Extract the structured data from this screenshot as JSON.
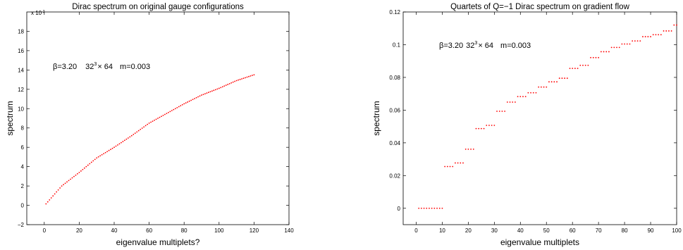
{
  "chart_data": [
    {
      "type": "scatter",
      "title": "Dirac spectrum on original gauge configurations",
      "xlabel": "eigenvalue multiplets?",
      "ylabel": "spectrum",
      "y_exponent_label": "x 10",
      "y_exponent_power": "-3",
      "annotation_beta": "β=3.20",
      "annotation_lattice_base": "32",
      "annotation_lattice_sup": "3",
      "annotation_lattice_rest": "× 64",
      "annotation_mass": "m=0.003",
      "xlim": [
        -10,
        140
      ],
      "ylim": [
        -2,
        20
      ],
      "xticks": [
        "0",
        "20",
        "40",
        "60",
        "80",
        "100",
        "120",
        "140"
      ],
      "yticks": [
        "−2",
        "0",
        "2",
        "4",
        "6",
        "8",
        "10",
        "12",
        "14",
        "16",
        "18"
      ],
      "series": [
        {
          "color": "#ff0000",
          "x": [
            1,
            10,
            20,
            30,
            40,
            50,
            60,
            70,
            80,
            90,
            100,
            110,
            120
          ],
          "y": [
            0.15,
            2.0,
            3.4,
            4.9,
            6.0,
            7.2,
            8.5,
            9.5,
            10.5,
            11.4,
            12.1,
            12.9,
            13.5
          ]
        }
      ]
    },
    {
      "type": "scatter",
      "title": "Quartets of Q=−1 Dirac spectrum on gradient flow",
      "xlabel": "eigenvalue multiplets",
      "ylabel": "spectrum",
      "annotation_beta": "β=3.20",
      "annotation_lattice_base": "32",
      "annotation_lattice_sup": "3",
      "annotation_lattice_rest": "× 64",
      "annotation_mass": "m=0.003",
      "xlim": [
        -5,
        100
      ],
      "ylim": [
        -0.01,
        0.12
      ],
      "xticks": [
        "0",
        "10",
        "20",
        "30",
        "40",
        "50",
        "60",
        "70",
        "80",
        "90",
        "100"
      ],
      "yticks": [
        "0",
        "0.02",
        "0.04",
        "0.06",
        "0.08",
        "0.1",
        "0.12"
      ],
      "series": [
        {
          "color": "#ff0000",
          "x": [
            1,
            2,
            3,
            4,
            5,
            6,
            7,
            8,
            9,
            10,
            11,
            12,
            13,
            14,
            15,
            16,
            17,
            18,
            19,
            20,
            21,
            22,
            23,
            24,
            25,
            26,
            27,
            28,
            29,
            30,
            31,
            32,
            33,
            34,
            35,
            36,
            37,
            38,
            39,
            40,
            41,
            42,
            43,
            44,
            45,
            46,
            47,
            48,
            49,
            50,
            51,
            52,
            53,
            54,
            55,
            56,
            57,
            58,
            59,
            60,
            61,
            62,
            63,
            64,
            65,
            66,
            67,
            68,
            69,
            70,
            71,
            72,
            73,
            74,
            75,
            76,
            77,
            78,
            79,
            80,
            81,
            82,
            83,
            84,
            85,
            86,
            87,
            88,
            89,
            90,
            91,
            92,
            93,
            94,
            95,
            96,
            97,
            98,
            99,
            100
          ],
          "y": [
            0,
            0,
            0,
            0,
            0,
            0,
            0,
            0,
            0,
            0,
            0.0255,
            0.0255,
            0.0255,
            0.0255,
            0.0277,
            0.0277,
            0.0277,
            0.0277,
            0.0361,
            0.0361,
            0.0361,
            0.0361,
            0.0487,
            0.0487,
            0.0487,
            0.0487,
            0.0507,
            0.0507,
            0.0507,
            0.0507,
            0.0593,
            0.0593,
            0.0593,
            0.0593,
            0.0649,
            0.0649,
            0.0649,
            0.0649,
            0.0683,
            0.0683,
            0.0683,
            0.0683,
            0.0706,
            0.0706,
            0.0706,
            0.0706,
            0.0741,
            0.0741,
            0.0741,
            0.0741,
            0.0773,
            0.0773,
            0.0773,
            0.0773,
            0.0795,
            0.0795,
            0.0795,
            0.0795,
            0.0855,
            0.0855,
            0.0855,
            0.0855,
            0.0874,
            0.0874,
            0.0874,
            0.0874,
            0.0921,
            0.0921,
            0.0921,
            0.0921,
            0.0957,
            0.0957,
            0.0957,
            0.0957,
            0.0983,
            0.0983,
            0.0983,
            0.0983,
            0.1004,
            0.1004,
            0.1004,
            0.1004,
            0.1023,
            0.1023,
            0.1023,
            0.1023,
            0.1049,
            0.1049,
            0.1049,
            0.1049,
            0.1061,
            0.1061,
            0.1061,
            0.1061,
            0.1084,
            0.1084,
            0.1084,
            0.1084,
            0.112,
            0.112
          ]
        }
      ]
    }
  ]
}
